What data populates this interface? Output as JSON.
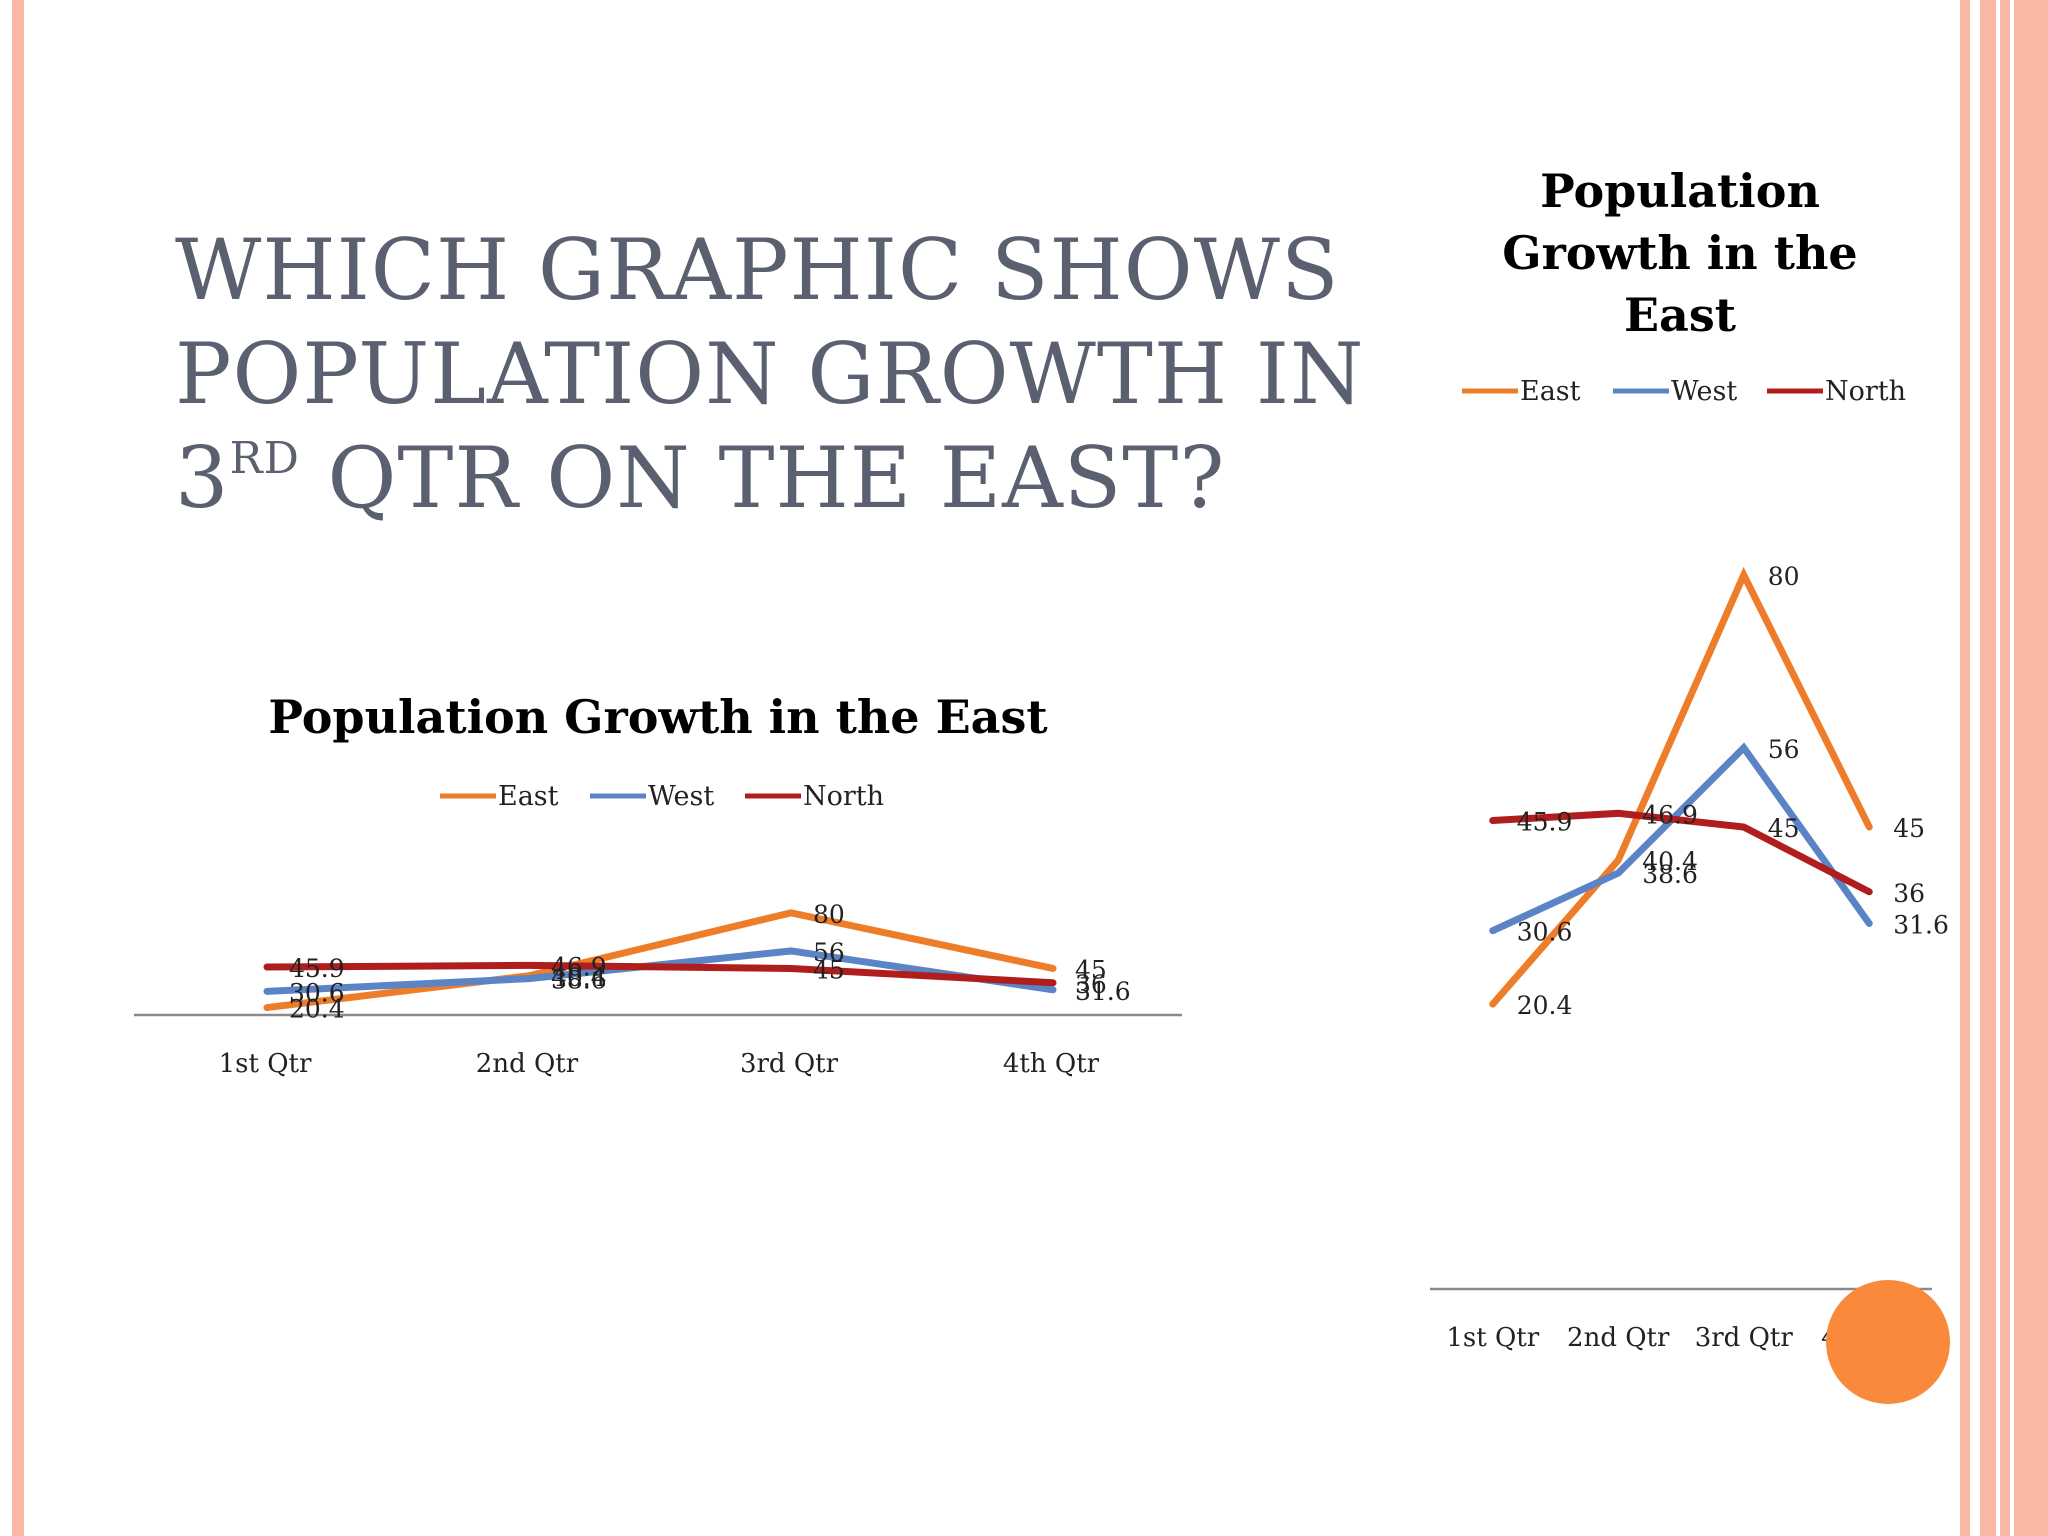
{
  "slide": {
    "title_main": "WHICH GRAPHIC SHOWS POPULATION GROWTH IN 3",
    "title_sup": "RD",
    "title_end": " QTR ON THE EAST?"
  },
  "colors": {
    "border": "#f7b9a4",
    "title": "#5a6070",
    "highlight": "#f98a3c"
  },
  "chart_data": [
    {
      "type": "line",
      "title": "Population Growth in the East",
      "categories": [
        "1st Qtr",
        "2nd Qtr",
        "3rd Qtr",
        "4th Qtr"
      ],
      "series": [
        {
          "name": "East",
          "color": "#ee7d2a",
          "values": [
            20.4,
            40.4,
            80,
            45
          ]
        },
        {
          "name": "West",
          "color": "#5b84c7",
          "values": [
            30.6,
            38.6,
            56,
            31.6
          ]
        },
        {
          "name": "North",
          "color": "#b01d1d",
          "values": [
            45.9,
            46.9,
            45,
            36
          ]
        }
      ],
      "legend": "top",
      "grid": false
    },
    {
      "type": "line",
      "title": "Population Growth in the East",
      "categories": [
        "1st Qtr",
        "2nd Qtr",
        "3rd Qtr",
        "4th Qtr"
      ],
      "series": [
        {
          "name": "East",
          "color": "#ee7d2a",
          "values": [
            20.4,
            40.4,
            80,
            45
          ]
        },
        {
          "name": "West",
          "color": "#5b84c7",
          "values": [
            30.6,
            38.6,
            56,
            31.6
          ]
        },
        {
          "name": "North",
          "color": "#b01d1d",
          "values": [
            45.9,
            46.9,
            45,
            36
          ]
        }
      ],
      "legend": "top",
      "grid": false
    }
  ]
}
